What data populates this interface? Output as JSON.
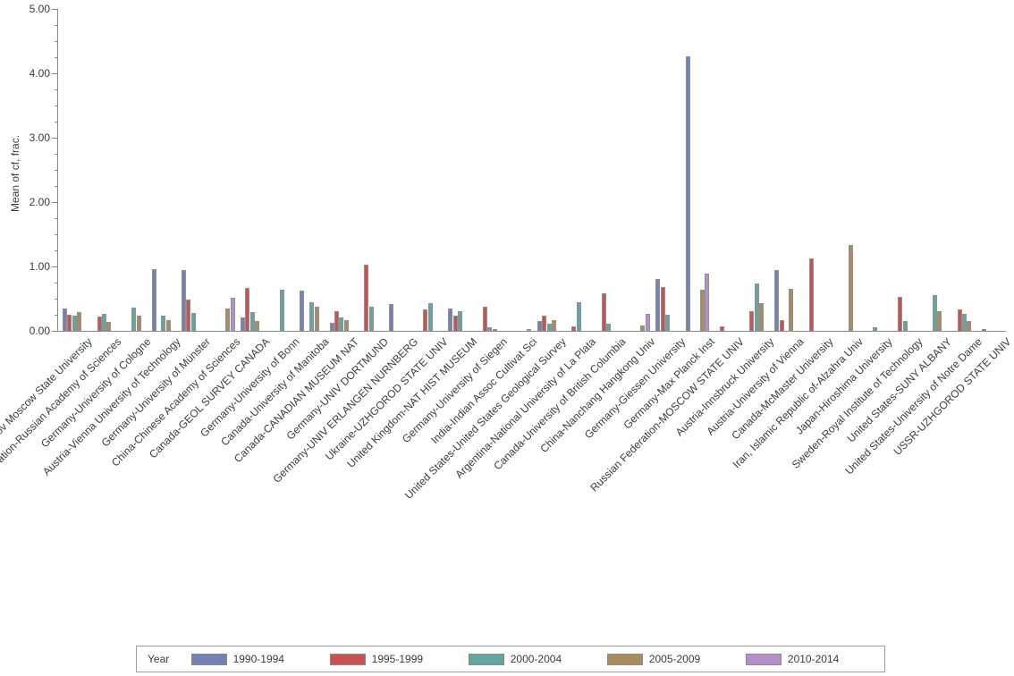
{
  "figure": {
    "background_color": "#ffffff",
    "axis_color": "#8b8b8b",
    "text_color": "#3b3b3b",
    "bar_border_color": "#919191"
  },
  "chart_data": {
    "type": "bar",
    "title": "",
    "xlabel": "",
    "ylabel": "Mean of cf, frac.",
    "ylim": [
      0,
      5
    ],
    "ytick_labels": [
      "0.00",
      "1.00",
      "2.00",
      "3.00",
      "4.00",
      "5.00"
    ],
    "minor_tick_step": 0.25,
    "grid": false,
    "legend_title": "Year",
    "legend_position": "bottom",
    "categories": [
      "Russian Federation-Lomonosov Moscow State University",
      "Russian Federation-Russian Academy of Sciences",
      "Germany-University of Cologne",
      "Austria-Vienna University of Technology",
      "Germany-University of Münster",
      "China-Chinese Academy of Sciences",
      "Canada-GEOL SURVEY CANADA",
      "Germany-University of Bonn",
      "Canada-University of Manitoba",
      "Canada-CANADIAN MUSEUM NAT",
      "Germany-UNIV DORTMUND",
      "Germany-UNIV ERLANGEN NURNBERG",
      "Ukraine-UZHGOROD STATE UNIV",
      "United Kingdom-NAT HIST MUSEUM",
      "Germany-University of Siegen",
      "India-Indian Assoc Cultivat Sci",
      "United States-United States Geological Survey",
      "Argentina-National University of La Plata",
      "Canada-University of British Columbia",
      "China-Nanchang Hangkong Univ",
      "Germany-Giessen University",
      "Germany-Max Planck Inst",
      "Russian Federation-MOSCOW STATE UNIV",
      "Austria-Innsbruck University",
      "Austria-University of Vienna",
      "Canada-McMaster University",
      "Iran, Islamic Republic of-Alzahra Univ",
      "Japan-Hiroshima University",
      "Sweden-Royal Institute of Technology",
      "United States-SUNY ALBANY",
      "United States-University of Notre Dame",
      "USSR-UZHGOROD STATE UNIV"
    ],
    "series": [
      {
        "name": "1990-1994",
        "color": "#7381b5",
        "values": [
          0.35,
          null,
          null,
          0.96,
          0.94,
          null,
          0.21,
          null,
          0.63,
          0.13,
          null,
          0.41,
          null,
          0.35,
          null,
          null,
          0.15,
          null,
          null,
          null,
          0.81,
          4.26,
          null,
          null,
          0.95,
          null,
          null,
          null,
          null,
          null,
          null,
          0.03
        ]
      },
      {
        "name": "1995-1999",
        "color": "#c9514f",
        "values": [
          0.25,
          0.22,
          null,
          null,
          0.49,
          null,
          0.67,
          null,
          null,
          0.31,
          1.03,
          null,
          0.33,
          0.23,
          0.38,
          null,
          0.23,
          0.07,
          0.58,
          null,
          0.68,
          null,
          0.07,
          0.3,
          0.16,
          1.12,
          null,
          null,
          0.53,
          null,
          0.33,
          null
        ]
      },
      {
        "name": "2000-2004",
        "color": "#61a69f",
        "values": [
          0.24,
          0.27,
          0.36,
          0.23,
          0.28,
          null,
          0.29,
          0.64,
          0.45,
          0.21,
          0.37,
          null,
          0.43,
          0.3,
          0.05,
          null,
          0.11,
          0.44,
          0.11,
          null,
          0.25,
          null,
          null,
          0.73,
          null,
          null,
          null,
          0.05,
          0.15,
          0.55,
          0.27,
          null
        ]
      },
      {
        "name": "2005-2009",
        "color": "#a98c5e",
        "values": [
          0.29,
          0.14,
          0.24,
          0.16,
          null,
          0.35,
          0.15,
          null,
          0.37,
          0.16,
          null,
          null,
          null,
          null,
          0.03,
          null,
          0.16,
          null,
          null,
          0.09,
          null,
          0.64,
          null,
          0.43,
          0.65,
          null,
          1.34,
          null,
          null,
          0.3,
          0.15,
          null
        ]
      },
      {
        "name": "2010-2014",
        "color": "#b68ec8",
        "values": [
          null,
          null,
          null,
          null,
          null,
          0.52,
          null,
          null,
          null,
          null,
          null,
          null,
          null,
          null,
          null,
          0.03,
          null,
          null,
          null,
          0.26,
          null,
          0.89,
          null,
          null,
          null,
          null,
          null,
          null,
          null,
          null,
          null,
          null
        ]
      }
    ]
  }
}
